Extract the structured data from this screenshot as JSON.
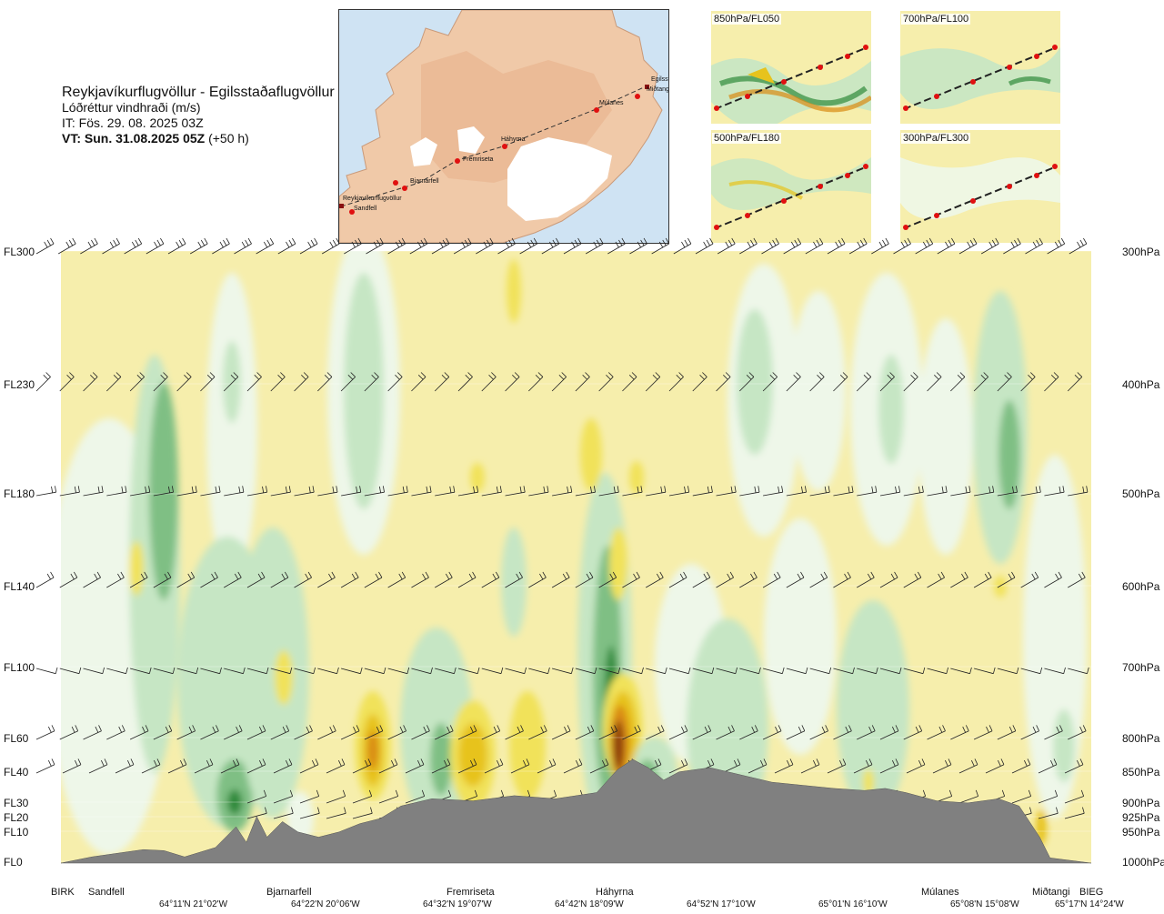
{
  "header": {
    "route": "Reykjavíkurflugvöllur - Egilsstaðaflugvöllur",
    "product": "Lóðréttur vindhraði (m/s)",
    "init_time": "IT: Fös. 29. 08. 2025 03Z",
    "valid_time": "VT: Sun. 31.08.2025 05Z",
    "lead": "(+50 h)"
  },
  "route_map": {
    "labels": [
      "Reykjavíkurflugvöllur",
      "Sandfell",
      "Bjarnarfell",
      "Fremriseta",
      "Háhyrna",
      "Múlanes",
      "Egilsstaðir",
      "Miðtangi"
    ],
    "route_color": "#333333",
    "point_color": "#e01010"
  },
  "level_maps": [
    {
      "label": "850hPa/FL050"
    },
    {
      "label": "700hPa/FL100"
    },
    {
      "label": "500hPa/FL180"
    },
    {
      "label": "300hPa/FL300"
    }
  ],
  "chart_data": {
    "type": "heatmap",
    "title": "Lóðréttur vindhraði (m/s)",
    "left_axis_labels": [
      "FL300",
      "FL230",
      "FL180",
      "FL140",
      "FL100",
      "FL60",
      "FL40",
      "FL30",
      "FL20",
      "FL10",
      "FL0"
    ],
    "right_axis_labels": [
      "300hPa",
      "400hPa",
      "500hPa",
      "600hPa",
      "700hPa",
      "800hPa",
      "850hPa",
      "900hPa",
      "925hPa",
      "950hPa",
      "1000hPa"
    ],
    "x_waypoints": [
      "BIRK",
      "Sandfell",
      "Bjarnarfell",
      "Fremriseta",
      "Háhyrna",
      "Múlanes",
      "Miðtangi",
      "BIEG"
    ],
    "x_coordinates": [
      "64°11'N 21°02'W",
      "64°22'N 20°06'W",
      "64°32'N 19°07'W",
      "64°42'N 18°09'W",
      "64°52'N 17°10'W",
      "65°01'N 16°10'W",
      "65°08'N 15°08'W",
      "65°17'N 14°24'W"
    ],
    "x_distance_fraction": [
      0.0,
      0.036,
      0.213,
      0.394,
      0.581,
      0.755,
      0.937,
      0.981
    ],
    "color_scale": {
      "strong_down": "#2f8a3a",
      "moderate_down": "#7fbf84",
      "weak_down": "#c6e6c4",
      "near_zero_down": "#eef7e9",
      "near_zero": "#fbf6d6",
      "background": "#f6eeac",
      "weak_up": "#f1e25a",
      "moderate_up": "#e7c31d",
      "strong_up": "#d98a12",
      "extreme_up": "#8a3a10"
    },
    "terrain_color": "#808080",
    "barb_color": "#222222",
    "terrain_profile_fraction": [
      [
        0.0,
        0.0
      ],
      [
        0.03,
        0.06
      ],
      [
        0.08,
        0.13
      ],
      [
        0.1,
        0.12
      ],
      [
        0.12,
        0.06
      ],
      [
        0.15,
        0.15
      ],
      [
        0.17,
        0.35
      ],
      [
        0.18,
        0.2
      ],
      [
        0.19,
        0.45
      ],
      [
        0.2,
        0.25
      ],
      [
        0.215,
        0.4
      ],
      [
        0.23,
        0.3
      ],
      [
        0.25,
        0.25
      ],
      [
        0.27,
        0.3
      ],
      [
        0.29,
        0.38
      ],
      [
        0.31,
        0.43
      ],
      [
        0.33,
        0.55
      ],
      [
        0.36,
        0.62
      ],
      [
        0.4,
        0.6
      ],
      [
        0.44,
        0.65
      ],
      [
        0.48,
        0.62
      ],
      [
        0.52,
        0.68
      ],
      [
        0.54,
        0.9
      ],
      [
        0.555,
        1.0
      ],
      [
        0.57,
        0.92
      ],
      [
        0.585,
        0.8
      ],
      [
        0.6,
        0.88
      ],
      [
        0.63,
        0.92
      ],
      [
        0.66,
        0.85
      ],
      [
        0.69,
        0.78
      ],
      [
        0.72,
        0.75
      ],
      [
        0.75,
        0.72
      ],
      [
        0.78,
        0.7
      ],
      [
        0.8,
        0.72
      ],
      [
        0.82,
        0.68
      ],
      [
        0.85,
        0.6
      ],
      [
        0.88,
        0.58
      ],
      [
        0.91,
        0.62
      ],
      [
        0.93,
        0.55
      ],
      [
        0.95,
        0.25
      ],
      [
        0.96,
        0.05
      ],
      [
        1.0,
        0.0
      ]
    ]
  }
}
